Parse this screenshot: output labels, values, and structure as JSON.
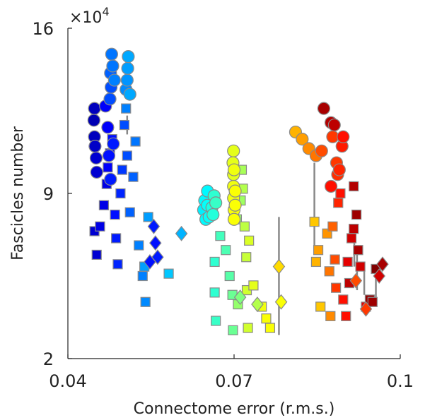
{
  "chart_data": {
    "type": "scatter",
    "title": "",
    "xlabel": "Connectome error (r.m.s.)",
    "ylabel": "Fascicles number",
    "y_exponent_label": "×10",
    "y_exponent_power": "4",
    "xlim": [
      0.04,
      0.1
    ],
    "ylim": [
      2,
      16
    ],
    "xticks": [
      0.04,
      0.07,
      0.1
    ],
    "xtick_labels": [
      "0.04",
      "0.07",
      "0.1"
    ],
    "yticks": [
      2,
      9,
      16
    ],
    "ytick_labels": [
      "2",
      "9",
      "16"
    ],
    "grid": false,
    "legend": "none",
    "colormap": "jet",
    "groups": [
      {
        "marker": "square",
        "points": [
          [
            0.0452,
            6.4,
            0.08
          ],
          [
            0.0448,
            7.4,
            0.08
          ],
          [
            0.0458,
            7.6,
            0.1
          ],
          [
            0.0465,
            8.5,
            0.1
          ],
          [
            0.047,
            9.4,
            0.1
          ],
          [
            0.0472,
            10.1,
            0.12
          ],
          [
            0.0476,
            10.7,
            0.12
          ],
          [
            0.048,
            11.3,
            0.14
          ],
          [
            0.0485,
            8.1,
            0.14
          ],
          [
            0.0487,
            7.1,
            0.15
          ],
          [
            0.049,
            6.0,
            0.16
          ],
          [
            0.0495,
            9.0,
            0.16
          ],
          [
            0.0498,
            10.0,
            0.18
          ],
          [
            0.0502,
            11.9,
            0.2
          ],
          [
            0.0507,
            10.6,
            0.2
          ],
          [
            0.0512,
            8.2,
            0.22
          ],
          [
            0.0518,
            9.7,
            0.22
          ],
          [
            0.0522,
            11.2,
            0.24
          ],
          [
            0.0505,
            12.6,
            0.25
          ],
          [
            0.0528,
            6.8,
            0.25
          ],
          [
            0.0535,
            5.5,
            0.25
          ],
          [
            0.054,
            4.4,
            0.26
          ],
          [
            0.0545,
            8.0,
            0.28
          ],
          [
            0.0538,
            5.9,
            0.28
          ],
          [
            0.0582,
            5.6,
            0.32
          ],
          [
            0.0665,
            6.1,
            0.42
          ],
          [
            0.0665,
            4.8,
            0.42
          ],
          [
            0.0667,
            3.6,
            0.43
          ],
          [
            0.0675,
            7.2,
            0.44
          ],
          [
            0.0685,
            6.6,
            0.45
          ],
          [
            0.0692,
            5.5,
            0.46
          ],
          [
            0.0697,
            4.7,
            0.48
          ],
          [
            0.0698,
            3.2,
            0.48
          ],
          [
            0.07,
            8.2,
            0.5
          ],
          [
            0.0705,
            7.9,
            0.52
          ],
          [
            0.0707,
            4.3,
            0.52
          ],
          [
            0.0712,
            8.7,
            0.53
          ],
          [
            0.0714,
            10.0,
            0.54
          ],
          [
            0.0716,
            9.2,
            0.55
          ],
          [
            0.0719,
            7.6,
            0.56
          ],
          [
            0.0722,
            6.3,
            0.57
          ],
          [
            0.0723,
            4.9,
            0.58
          ],
          [
            0.0725,
            3.3,
            0.58
          ],
          [
            0.0727,
            7.0,
            0.59
          ],
          [
            0.0735,
            5.1,
            0.6
          ],
          [
            0.075,
            4.2,
            0.61
          ],
          [
            0.0758,
            3.7,
            0.62
          ],
          [
            0.0765,
            3.3,
            0.62
          ],
          [
            0.0845,
            7.8,
            0.68
          ],
          [
            0.0848,
            6.1,
            0.7
          ],
          [
            0.0852,
            6.6,
            0.72
          ],
          [
            0.0856,
            4.2,
            0.68
          ],
          [
            0.0868,
            7.3,
            0.73
          ],
          [
            0.0872,
            5.7,
            0.76
          ],
          [
            0.0874,
            3.8,
            0.74
          ],
          [
            0.0878,
            7.6,
            0.78
          ],
          [
            0.0882,
            6.2,
            0.8
          ],
          [
            0.0884,
            5.0,
            0.82
          ],
          [
            0.0888,
            8.6,
            0.84
          ],
          [
            0.0892,
            9.0,
            0.86
          ],
          [
            0.0897,
            4.5,
            0.86
          ],
          [
            0.0902,
            3.8,
            0.86
          ],
          [
            0.0905,
            6.1,
            0.9
          ],
          [
            0.0908,
            5.2,
            0.94
          ],
          [
            0.0912,
            7.1,
            0.92
          ],
          [
            0.0916,
            9.3,
            0.95
          ],
          [
            0.0916,
            7.5,
            0.94
          ],
          [
            0.0921,
            8.1,
            0.97
          ],
          [
            0.0924,
            6.6,
            0.96
          ],
          [
            0.0928,
            5.9,
            0.92
          ],
          [
            0.0938,
            4.2,
            0.9
          ],
          [
            0.0945,
            4.5,
            0.98
          ],
          [
            0.0956,
            5.8,
            1.0
          ],
          [
            0.095,
            4.4,
            0.97
          ]
        ]
      },
      {
        "marker": "circle",
        "points": [
          [
            0.0448,
            11.4,
            0.06
          ],
          [
            0.0447,
            12.1,
            0.05
          ],
          [
            0.0448,
            12.6,
            0.06
          ],
          [
            0.0449,
            11.0,
            0.07
          ],
          [
            0.0451,
            10.5,
            0.08
          ],
          [
            0.0452,
            9.9,
            0.08
          ],
          [
            0.0468,
            12.7,
            0.12
          ],
          [
            0.0472,
            11.8,
            0.12
          ],
          [
            0.0474,
            10.6,
            0.14
          ],
          [
            0.0477,
            9.6,
            0.15
          ],
          [
            0.0482,
            11.1,
            0.15
          ],
          [
            0.0476,
            13.0,
            0.2
          ],
          [
            0.0478,
            13.5,
            0.2
          ],
          [
            0.0477,
            14.1,
            0.22
          ],
          [
            0.0479,
            14.9,
            0.24
          ],
          [
            0.0481,
            14.4,
            0.24
          ],
          [
            0.0484,
            13.8,
            0.25
          ],
          [
            0.0505,
            13.4,
            0.26
          ],
          [
            0.0507,
            13.8,
            0.27
          ],
          [
            0.0508,
            14.3,
            0.28
          ],
          [
            0.0509,
            14.8,
            0.29
          ],
          [
            0.0512,
            13.2,
            0.29
          ],
          [
            0.0645,
            8.3,
            0.36
          ],
          [
            0.0647,
            8.7,
            0.37
          ],
          [
            0.0649,
            7.9,
            0.37
          ],
          [
            0.0652,
            8.5,
            0.38
          ],
          [
            0.0655,
            8.0,
            0.38
          ],
          [
            0.0652,
            9.1,
            0.37
          ],
          [
            0.066,
            8.4,
            0.4
          ],
          [
            0.0662,
            8.1,
            0.41
          ],
          [
            0.0664,
            8.9,
            0.42
          ],
          [
            0.0667,
            8.6,
            0.43
          ],
          [
            0.0699,
            10.8,
            0.6
          ],
          [
            0.0698,
            10.3,
            0.6
          ],
          [
            0.0699,
            9.8,
            0.6
          ],
          [
            0.0699,
            9.3,
            0.61
          ],
          [
            0.0699,
            8.8,
            0.61
          ],
          [
            0.07,
            8.3,
            0.62
          ],
          [
            0.07,
            7.9,
            0.62
          ],
          [
            0.0702,
            8.5,
            0.62
          ],
          [
            0.0702,
            9.1,
            0.62
          ],
          [
            0.07,
            10.0,
            0.61
          ],
          [
            0.0811,
            11.6,
            0.7
          ],
          [
            0.0823,
            11.3,
            0.72
          ],
          [
            0.0835,
            10.9,
            0.74
          ],
          [
            0.0848,
            10.6,
            0.76
          ],
          [
            0.0858,
            10.8,
            0.8
          ],
          [
            0.0878,
            11.4,
            0.82
          ],
          [
            0.0885,
            10.3,
            0.82
          ],
          [
            0.0887,
            9.8,
            0.83
          ],
          [
            0.089,
            10.0,
            0.84
          ],
          [
            0.0895,
            11.0,
            0.85
          ],
          [
            0.0897,
            11.4,
            0.86
          ],
          [
            0.0875,
            9.3,
            0.86
          ],
          [
            0.0862,
            12.6,
            0.96
          ],
          [
            0.0875,
            12.0,
            0.95
          ],
          [
            0.0881,
            11.9,
            0.94
          ]
        ]
      },
      {
        "marker": "diamond",
        "points": [
          [
            0.0555,
            7.6,
            0.15
          ],
          [
            0.0558,
            6.9,
            0.14
          ],
          [
            0.0562,
            6.3,
            0.15
          ],
          [
            0.0548,
            6.1,
            0.14
          ],
          [
            0.0605,
            7.3,
            0.3
          ],
          [
            0.0711,
            4.6,
            0.5
          ],
          [
            0.0742,
            4.3,
            0.55
          ],
          [
            0.0781,
            5.9,
            0.66
          ],
          [
            0.0785,
            4.4,
            0.62
          ],
          [
            0.092,
            5.3,
            0.8
          ],
          [
            0.0938,
            4.1,
            0.82
          ],
          [
            0.0962,
            5.5,
            0.92
          ],
          [
            0.0968,
            6.0,
            0.96
          ]
        ]
      }
    ],
    "error_bars": [
      {
        "x": 0.0781,
        "y_low": 3.0,
        "y_high": 8.0
      },
      {
        "x": 0.0845,
        "y_low": 6.8,
        "y_high": 10.3
      },
      {
        "x": 0.0917,
        "y_low": 5.9,
        "y_high": 7.3
      },
      {
        "x": 0.0922,
        "y_low": 4.9,
        "y_high": 6.4
      },
      {
        "x": 0.0935,
        "y_low": 4.7,
        "y_high": 5.9
      },
      {
        "x": 0.0956,
        "y_low": 4.5,
        "y_high": 5.9
      },
      {
        "x": 0.0507,
        "y_low": 11.5,
        "y_high": 12.3
      }
    ]
  }
}
